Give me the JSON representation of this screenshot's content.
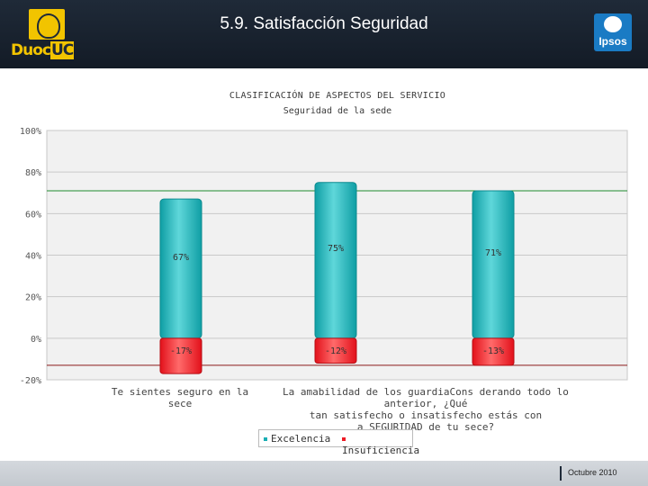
{
  "header": {
    "title": "5.9. Satisfacción Seguridad",
    "left_logo": {
      "text_a": "Duoc",
      "text_b": "UC",
      "icon": "university-seal-icon"
    },
    "right_logo": {
      "text": "Ipsos",
      "icon": "ipsos-logo-icon"
    }
  },
  "footer": {
    "date": "Octubre 2010"
  },
  "colors": {
    "excelencia": "#1aaeb4",
    "insuficiencia": "#ee1a24",
    "header_bg": "#1a2331",
    "reference_line": "#1e8c2e"
  },
  "chart_data": {
    "type": "bar",
    "title": "CLASIFICACIÓN DE ASPECTOS DEL SERVICIO",
    "subtitle": "Seguridad de la sede",
    "yticks": [
      "100%",
      "80%",
      "60%",
      "40%",
      "20%",
      "0%",
      "-20%"
    ],
    "ylim": [
      -20,
      100
    ],
    "grid": true,
    "reference_lines": {
      "upper": 71,
      "lower": -13
    },
    "categories": [
      "Te sientes seguro en la sece",
      "La amabilidad de los guardia",
      "Considerando todo lo anterior, ¿Qué tan satisfecho o insatisfecho estás con a SEGURIDAD de tu sece?"
    ],
    "category_labels_printed": [
      [
        "Te sientes seguro en la sece"
      ],
      [
        "La amabilidad de los guardiaCons derando todo lo anterior, ¿Qué",
        "tan satisfecho o insatisfecho estás con",
        "a SEGURIDAD de tu sece?"
      ]
    ],
    "series": [
      {
        "name": "Excelencia",
        "values": [
          67,
          75,
          71
        ],
        "labels": [
          "67%",
          "75%",
          "71%"
        ]
      },
      {
        "name": "Insuficiencia",
        "values": [
          -17,
          -12,
          -13
        ],
        "labels": [
          "-17%",
          "-12%",
          "-13%"
        ]
      }
    ],
    "legend_position": "bottom-center"
  }
}
